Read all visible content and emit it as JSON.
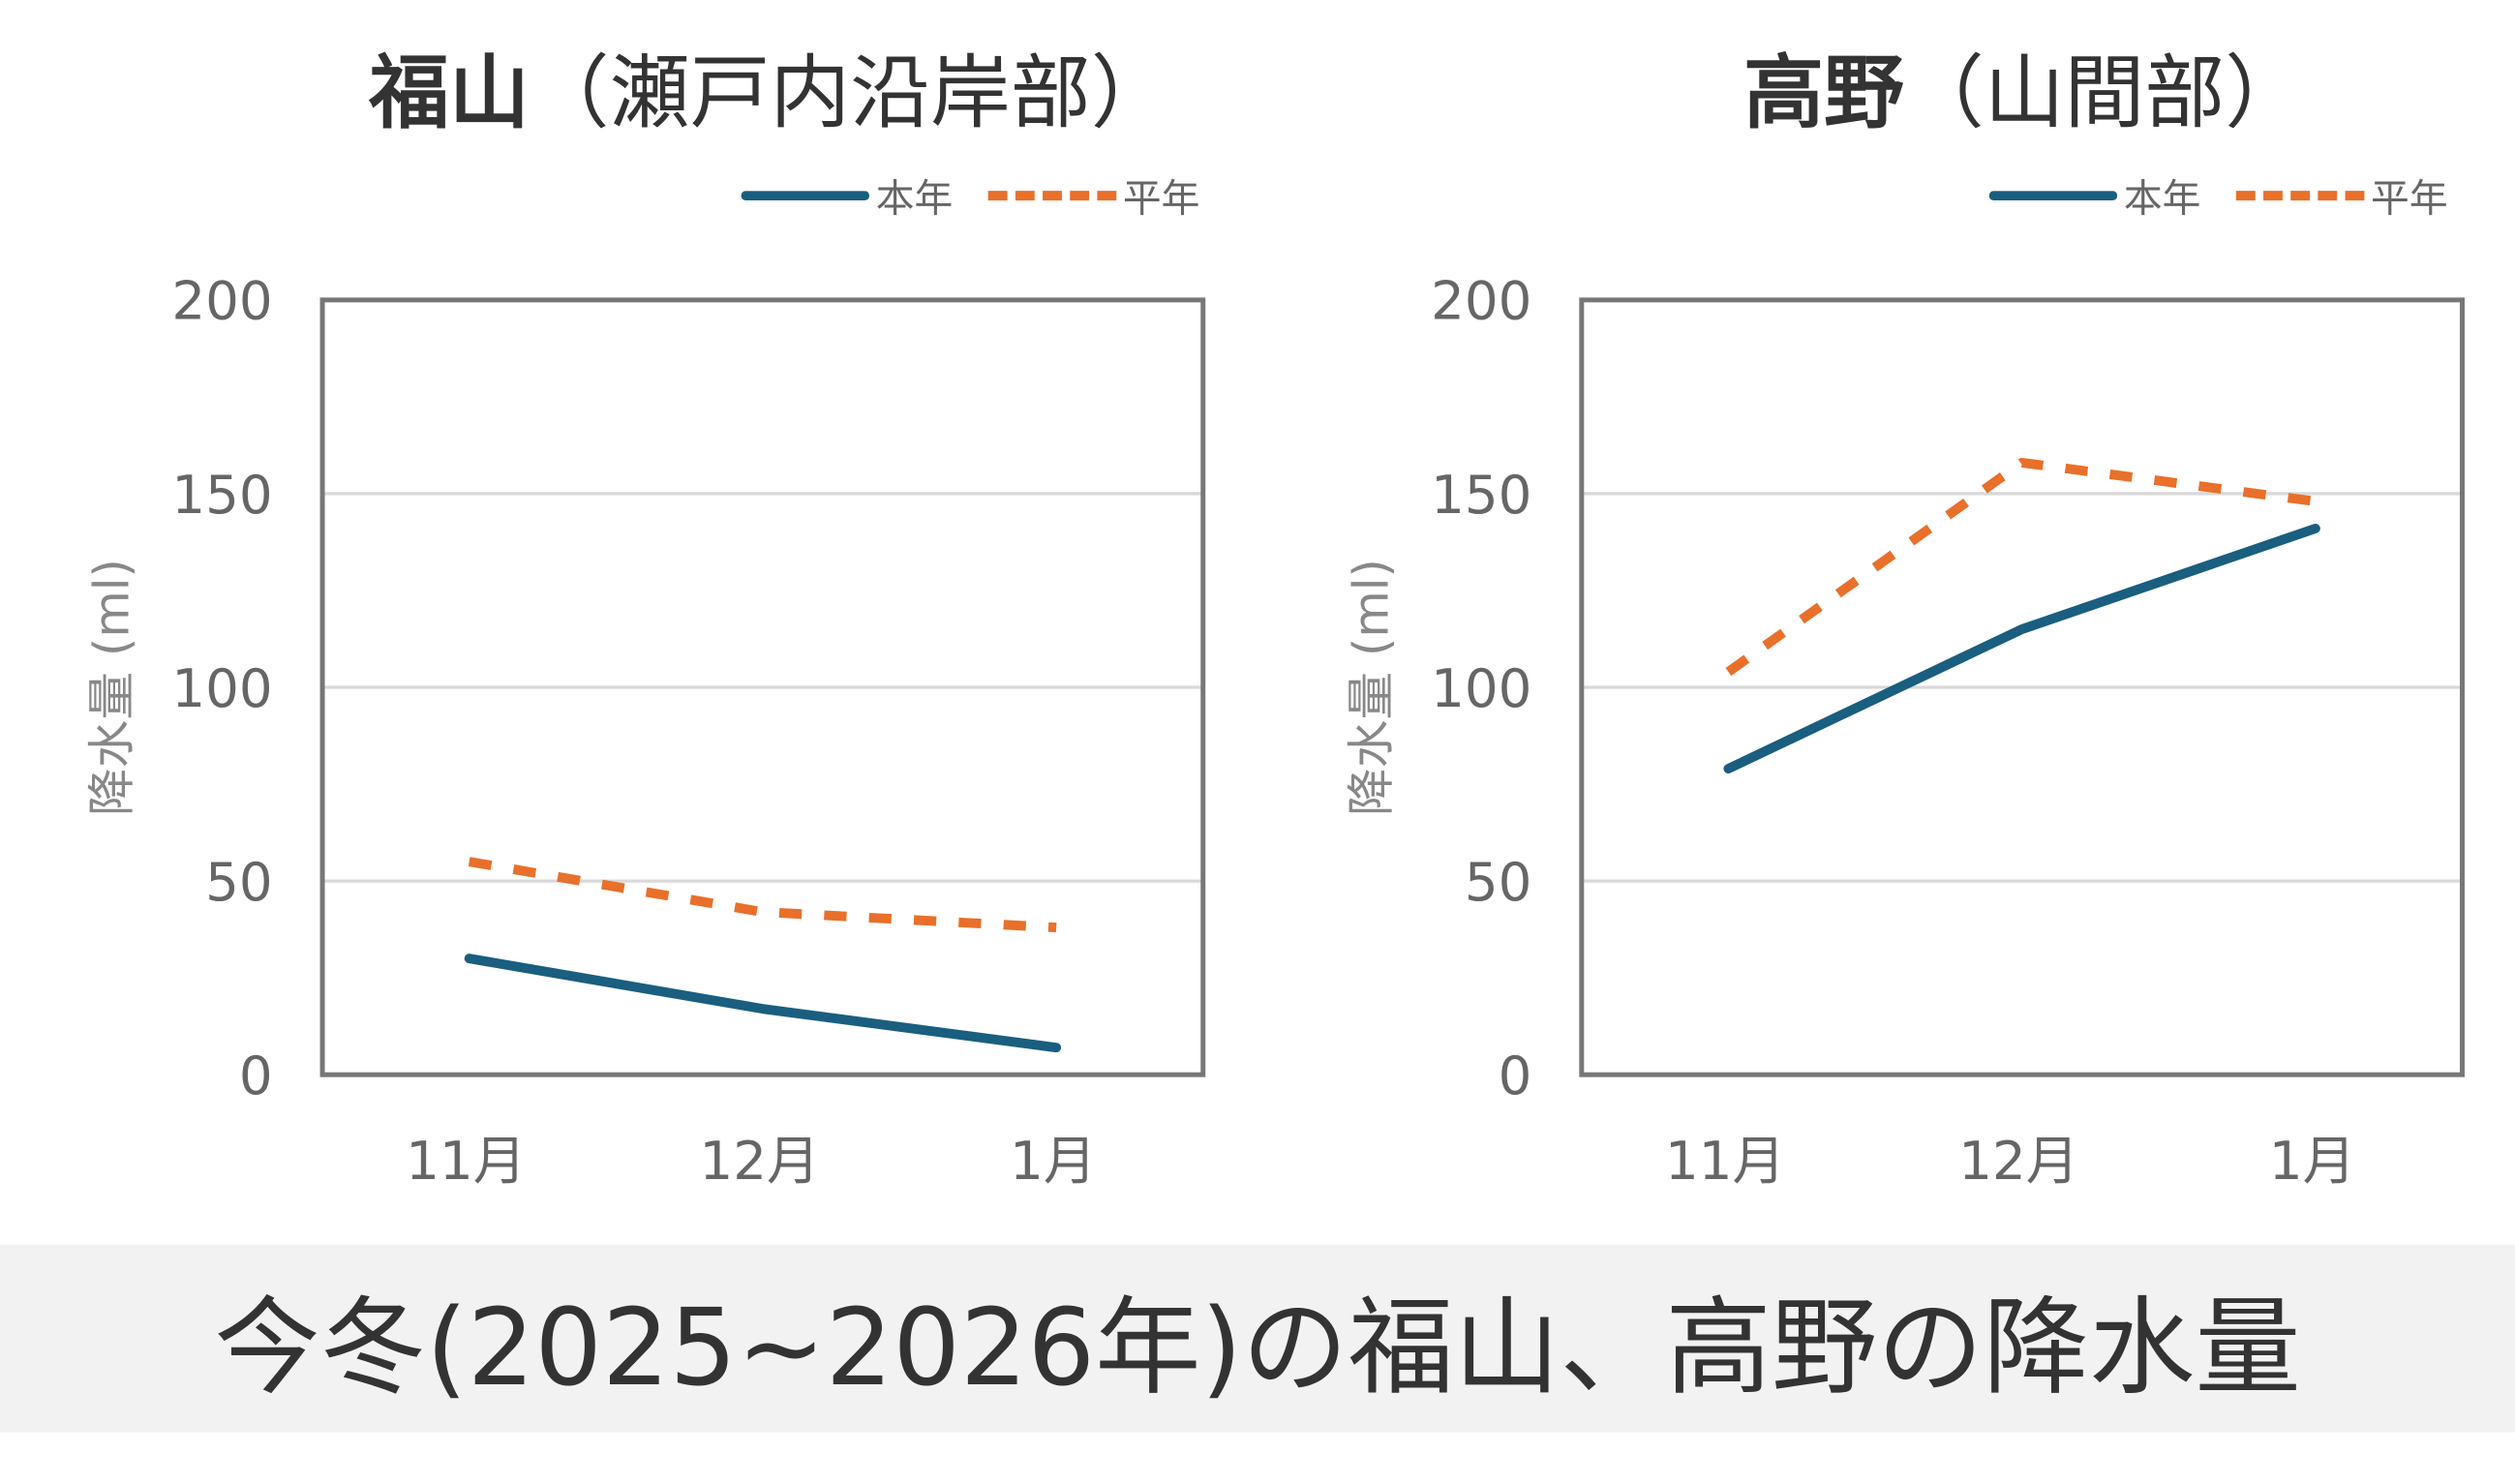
{
  "caption": "今冬(2025~2026年)の福山、高野の降水量",
  "colors": {
    "this_year": "#1a5e80",
    "normal": "#e8702a"
  },
  "chart_data": [
    {
      "type": "line",
      "title_main": "福山",
      "title_sub": "（瀬戸内沿岸部）",
      "ylabel": "降水量 (ml)",
      "categories": [
        "11月",
        "12月",
        "1月"
      ],
      "ylim": [
        0,
        200
      ],
      "yticks": [
        "0",
        "50",
        "100",
        "150",
        "200"
      ],
      "grid": true,
      "legend": "top-right",
      "series": [
        {
          "name": "本年",
          "style": "solid",
          "values": [
            30,
            17,
            7
          ]
        },
        {
          "name": "平年",
          "style": "dashed",
          "values": [
            55,
            42,
            38
          ]
        }
      ]
    },
    {
      "type": "line",
      "title_main": "高野",
      "title_sub": "（山間部）",
      "ylabel": "降水量 (ml)",
      "categories": [
        "11月",
        "12月",
        "1月"
      ],
      "ylim": [
        0,
        200
      ],
      "yticks": [
        "0",
        "50",
        "100",
        "150",
        "200"
      ],
      "grid": true,
      "legend": "top-right",
      "series": [
        {
          "name": "本年",
          "style": "solid",
          "values": [
            79,
            115,
            141
          ]
        },
        {
          "name": "平年",
          "style": "dashed",
          "values": [
            104,
            158,
            148
          ]
        }
      ]
    }
  ]
}
